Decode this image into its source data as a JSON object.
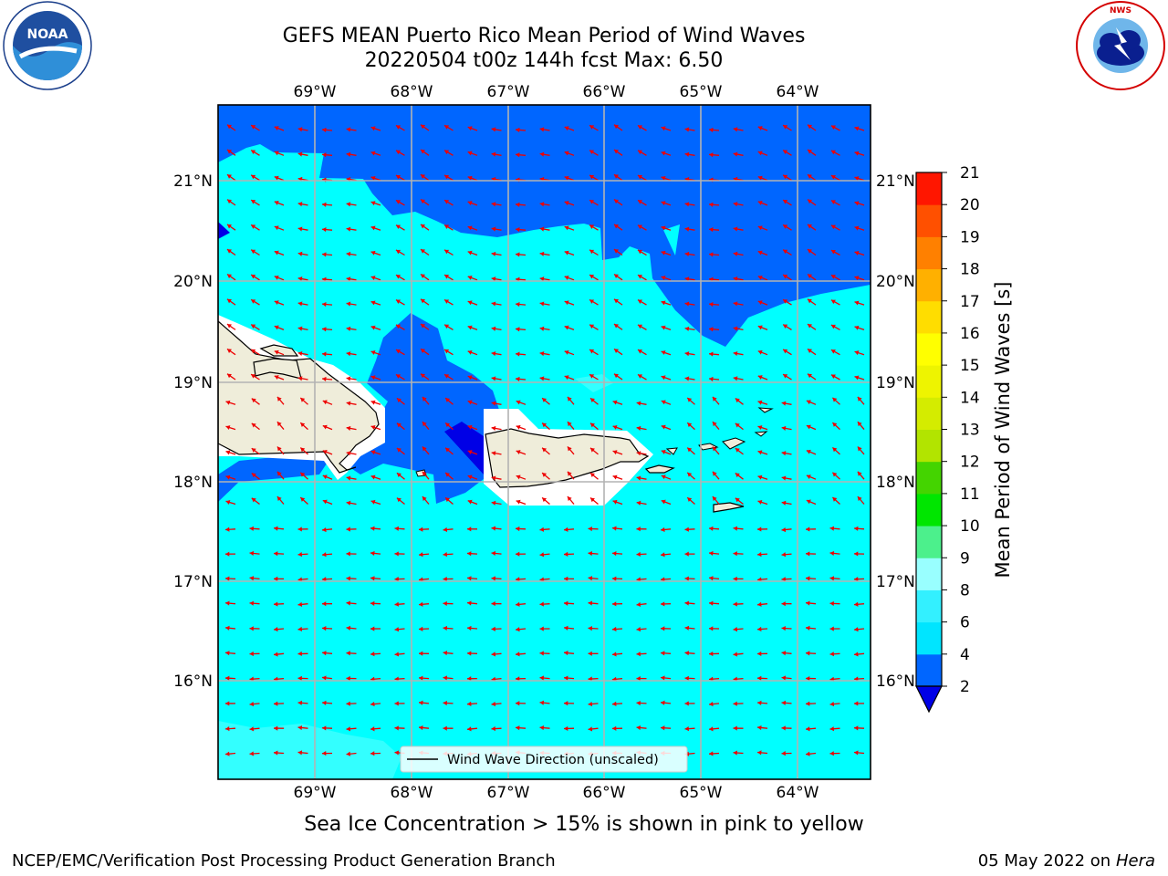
{
  "header": {
    "title_line1": "GEFS MEAN Puerto Rico Mean Period of Wind Waves",
    "title_line2": "20220504 t00z 144h fcst   Max: 6.50"
  },
  "map": {
    "lon_labels": [
      "69°W",
      "68°W",
      "67°W",
      "66°W",
      "65°W",
      "64°W"
    ],
    "lat_labels": [
      "21°N",
      "20°N",
      "19°N",
      "18°N",
      "17°N",
      "16°N"
    ],
    "legend_label": "Wind Wave Direction (unscaled)"
  },
  "colorbar": {
    "label": "Mean Period of Wind Waves [s]",
    "ticks": [
      "2",
      "4",
      "6",
      "8",
      "9",
      "10",
      "11",
      "12",
      "13",
      "14",
      "15",
      "16",
      "17",
      "18",
      "19",
      "20",
      "21"
    ],
    "colors": [
      "#0066ff",
      "#00e5ff",
      "#33f0ff",
      "#99ffff",
      "#4cf08c",
      "#00e600",
      "#44d400",
      "#b2e400",
      "#d4ec00",
      "#eef400",
      "#ffff00",
      "#ffdd00",
      "#ffb000",
      "#ff8000",
      "#ff5000",
      "#ff1600"
    ],
    "under_color": "#0000e6"
  },
  "colors": {
    "shade_low": "#0066ff",
    "shade_mid": "#00ffff",
    "shade_high": "#33ffff",
    "land": "#efedda",
    "arrow": "#ee0000"
  },
  "footer": {
    "note": "Sea Ice Concentration > 15% is shown in pink to yellow",
    "credit": "NCEP/EMC/Verification Post Processing Product Generation Branch",
    "date": "05 May 2022 on",
    "host": "Hera"
  },
  "logos": {
    "noaa": {
      "name": "noaa-logo",
      "text": "NOAA",
      "ring_text": "NATIONAL OCEANIC AND ATMOSPHERIC ADMINISTRATION"
    },
    "nws": {
      "name": "nws-logo",
      "ring_text": "NATIONAL WEATHER SERVICE"
    }
  }
}
